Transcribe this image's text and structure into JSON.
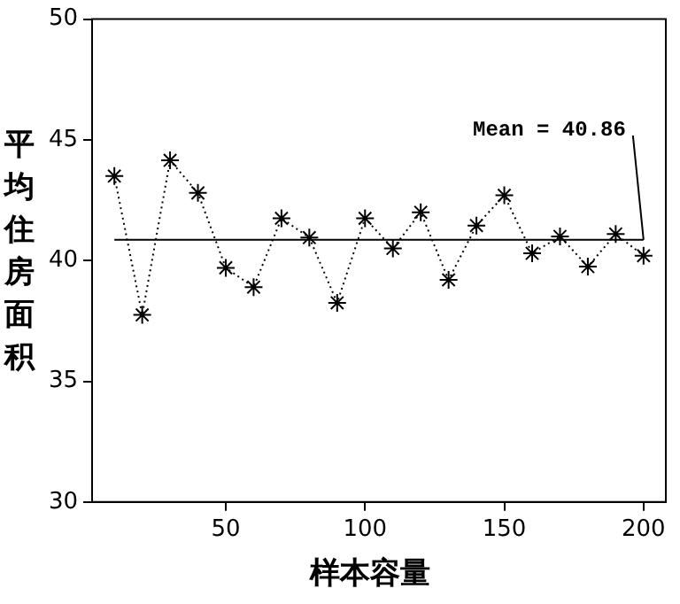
{
  "chart_data": {
    "type": "line",
    "xlabel": "样本容量",
    "ylabel": "平均住房面积",
    "x": [
      10,
      20,
      30,
      40,
      50,
      60,
      70,
      80,
      90,
      100,
      110,
      120,
      130,
      140,
      150,
      160,
      170,
      180,
      190,
      200
    ],
    "series": [
      {
        "color": "#000000",
        "values": [
          43.5,
          37.75,
          44.15,
          42.8,
          39.7,
          38.9,
          41.75,
          40.95,
          38.25,
          41.75,
          40.5,
          42.0,
          39.2,
          41.45,
          42.7,
          40.3,
          41.0,
          39.75,
          41.1,
          40.2
        ]
      }
    ],
    "xlim": [
      2,
      208
    ],
    "xticks": [
      50,
      100,
      150,
      200
    ],
    "ylim": [
      30,
      50
    ],
    "yticks": [
      30,
      35,
      40,
      45,
      50
    ],
    "ref_lines": [
      {
        "axis": "y",
        "value": 40.86,
        "label": "Mean = 40.86",
        "color": "#000000",
        "line_style": "solid"
      }
    ],
    "grid": false,
    "legend": false,
    "marker": "cross",
    "line_style": "dotted"
  }
}
